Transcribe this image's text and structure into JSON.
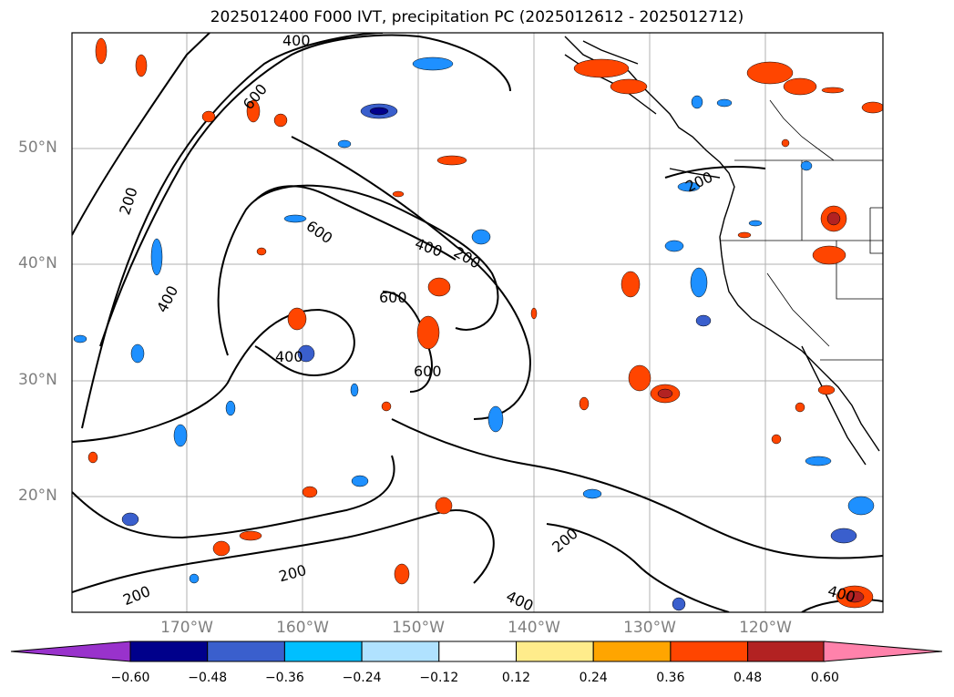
{
  "title": "2025012400 F000 IVT, precipitation PC (2025012612 - 2025012712)",
  "lat_labels": [
    "50°N",
    "40°N",
    "30°N",
    "20°N"
  ],
  "lon_labels": [
    "170°W",
    "160°W",
    "150°W",
    "140°W",
    "130°W",
    "120°W"
  ],
  "contour_labels": [
    "200",
    "200",
    "200",
    "200",
    "200",
    "200",
    "400",
    "400",
    "400",
    "400",
    "400",
    "600",
    "600",
    "600",
    "600",
    "400",
    "400",
    "200"
  ],
  "colorbar": {
    "ticks": [
      "−0.60",
      "−0.48",
      "−0.36",
      "−0.24",
      "−0.12",
      "0.12",
      "0.24",
      "0.36",
      "0.48",
      "0.60"
    ],
    "colors": [
      "#9932cc",
      "#00008b",
      "#3a5fcd",
      "#00bfff",
      "#b0e2ff",
      "#ffffff",
      "#ffec8b",
      "#ffa500",
      "#ff4500",
      "#b22222",
      "#ff82ab",
      "#ff82ab"
    ]
  },
  "colors": {
    "neg_light": "#b0e2ff",
    "neg_mid": "#1e90ff",
    "neg_dark": "#3a5fcd",
    "neg_darkest": "#00008b",
    "pos_light": "#ffec8b",
    "pos_mid": "#ffa500",
    "pos_dark": "#ff4500",
    "pos_darkest": "#b22222"
  }
}
